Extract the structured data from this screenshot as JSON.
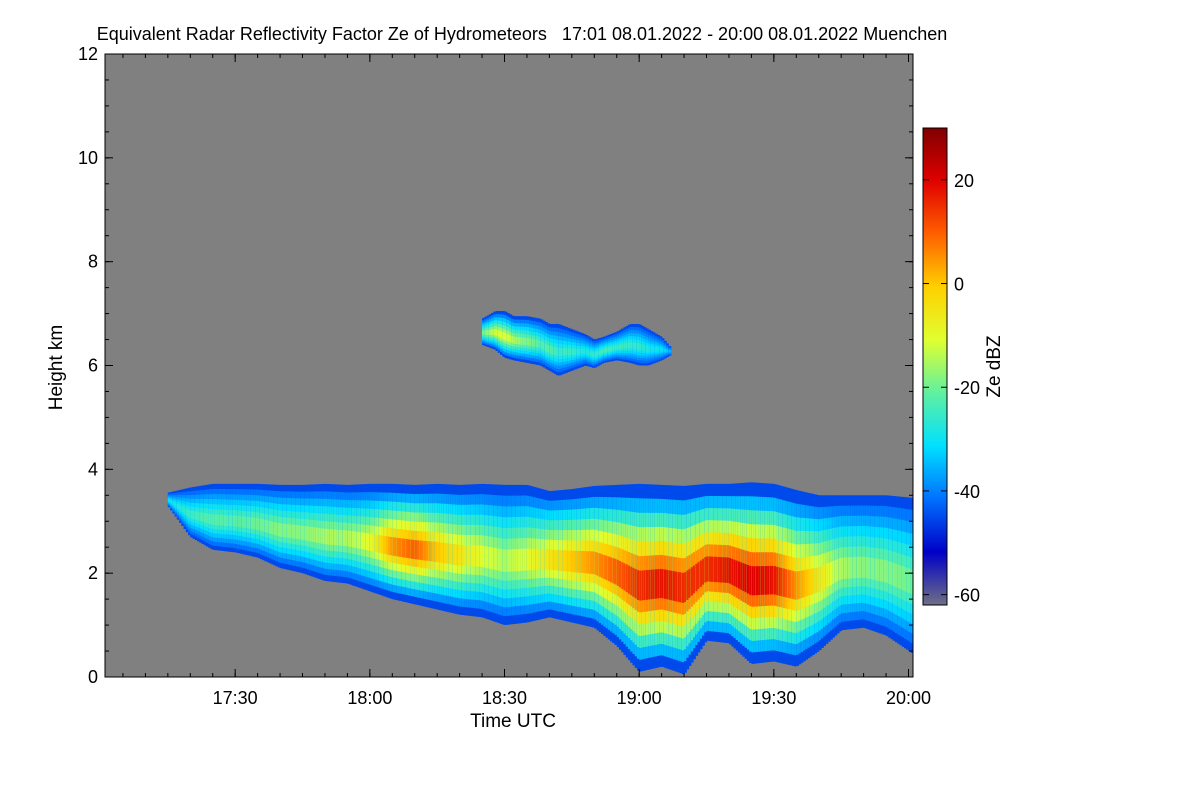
{
  "chart_data": {
    "type": "heatmap",
    "title": "Equivalent Radar Reflectivity Factor Ze of Hydrometeors   17:01 08.01.2022 - 20:00 08.01.2022 Muenchen",
    "xlabel": "Time UTC",
    "ylabel": "Height km",
    "colorbar_label": "Ze dBZ",
    "x_unit": "minutes after 17:00 UTC",
    "xlim": [
      1,
      181
    ],
    "ylim": [
      0,
      12
    ],
    "xticks": [
      {
        "value": 30,
        "label": "17:30"
      },
      {
        "value": 60,
        "label": "18:00"
      },
      {
        "value": 90,
        "label": "18:30"
      },
      {
        "value": 120,
        "label": "19:00"
      },
      {
        "value": 150,
        "label": "19:30"
      },
      {
        "value": 180,
        "label": "20:00"
      }
    ],
    "yticks": [
      {
        "value": 0,
        "label": "0"
      },
      {
        "value": 2,
        "label": "2"
      },
      {
        "value": 4,
        "label": "4"
      },
      {
        "value": 6,
        "label": "6"
      },
      {
        "value": 8,
        "label": "8"
      },
      {
        "value": 10,
        "label": "10"
      },
      {
        "value": 12,
        "label": "12"
      }
    ],
    "colorbar": {
      "range": [
        -62,
        30
      ],
      "ticks": [
        {
          "value": 20,
          "label": "20"
        },
        {
          "value": 0,
          "label": "0"
        },
        {
          "value": -20,
          "label": "-20"
        },
        {
          "value": -40,
          "label": "-40"
        },
        {
          "value": -60,
          "label": "-60"
        }
      ],
      "colormap": [
        "#6f6f86",
        "#0000c8",
        "#0070ff",
        "#00e0ff",
        "#60f0a0",
        "#e0ff30",
        "#ffd000",
        "#ff6000",
        "#e00000",
        "#800000"
      ]
    },
    "background_color": "#808080",
    "regions": [
      {
        "name": "lower cloud layer",
        "x": [
          15,
          20,
          25,
          30,
          35,
          40,
          45,
          50,
          55,
          60,
          65,
          70,
          75,
          80,
          85,
          90,
          95,
          100,
          105,
          110,
          115,
          120,
          125,
          130,
          135,
          140,
          145,
          150,
          155,
          160,
          165,
          170,
          175,
          181
        ],
        "top_km": [
          3.55,
          3.65,
          3.72,
          3.72,
          3.72,
          3.7,
          3.7,
          3.72,
          3.7,
          3.72,
          3.72,
          3.7,
          3.72,
          3.7,
          3.72,
          3.7,
          3.7,
          3.58,
          3.62,
          3.68,
          3.7,
          3.72,
          3.7,
          3.68,
          3.72,
          3.72,
          3.75,
          3.72,
          3.6,
          3.5,
          3.5,
          3.5,
          3.5,
          3.45
        ],
        "base_km": [
          3.3,
          2.7,
          2.45,
          2.4,
          2.3,
          2.1,
          2.0,
          1.85,
          1.8,
          1.65,
          1.5,
          1.4,
          1.3,
          1.2,
          1.15,
          1.0,
          1.05,
          1.15,
          1.05,
          0.95,
          0.6,
          0.1,
          0.2,
          0.05,
          0.7,
          0.65,
          0.25,
          0.3,
          0.2,
          0.5,
          0.9,
          0.95,
          0.8,
          0.45
        ],
        "max_dbz": [
          -30,
          -25,
          -22,
          -22,
          -20,
          -18,
          -18,
          -15,
          -15,
          -10,
          5,
          10,
          0,
          -5,
          -10,
          -15,
          -10,
          -5,
          0,
          5,
          10,
          15,
          18,
          15,
          15,
          18,
          20,
          18,
          5,
          -5,
          -15,
          -18,
          -18,
          -20
        ]
      },
      {
        "name": "upper cloud layer",
        "x": [
          85,
          88,
          90,
          92,
          95,
          98,
          100,
          102,
          105,
          108,
          110,
          112,
          115,
          118,
          120,
          122,
          125,
          127
        ],
        "top_km": [
          6.9,
          7.05,
          7.05,
          6.95,
          6.95,
          6.9,
          6.8,
          6.8,
          6.7,
          6.6,
          6.5,
          6.55,
          6.65,
          6.8,
          6.8,
          6.7,
          6.55,
          6.35
        ],
        "base_km": [
          6.4,
          6.3,
          6.15,
          6.1,
          6.05,
          6.0,
          5.9,
          5.8,
          5.9,
          6.0,
          5.95,
          6.05,
          6.1,
          6.05,
          6.0,
          6.0,
          6.1,
          6.2
        ],
        "max_dbz": [
          -20,
          -12,
          -10,
          -15,
          -18,
          -22,
          -22,
          -25,
          -25,
          -28,
          -26,
          -24,
          -25,
          -25,
          -26,
          -28,
          -30,
          -35
        ]
      }
    ],
    "grid": false,
    "legend": "colorbar right"
  }
}
